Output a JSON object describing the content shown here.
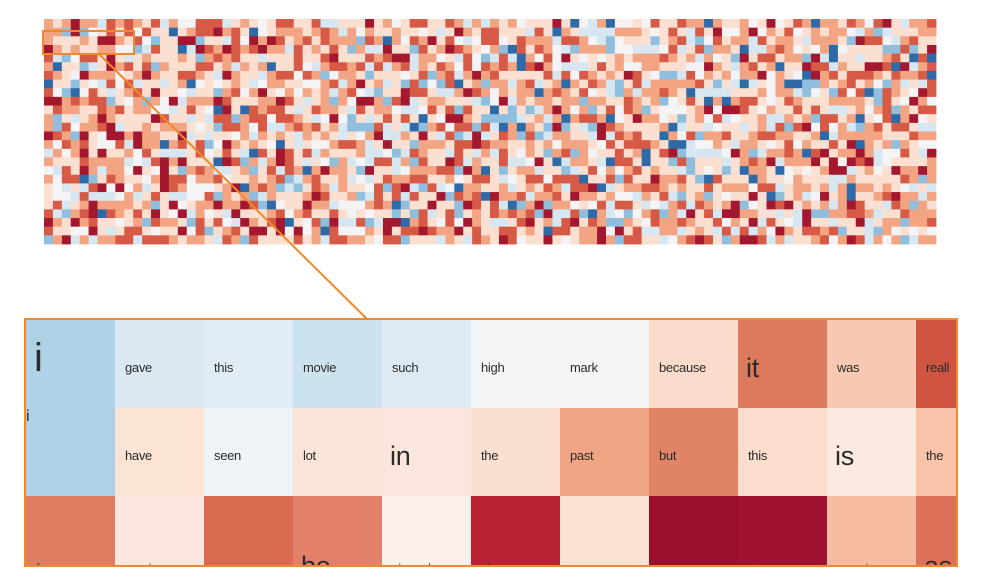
{
  "palette": {
    "strong_negative": "#2f6aa8",
    "negative": "#8fbfdc",
    "weak_negative": "#d6e7f2",
    "neutral": "#f4f4f6",
    "weak_positive": "#fbe0d2",
    "positive": "#f3a483",
    "strong_positive": "#d75a46",
    "very_strong_positive": "#a3172f",
    "highlight": "#f0892b"
  },
  "overview": {
    "rows": 26,
    "cols": 100
  },
  "zoom": {
    "rows": [
      [
        {
          "word": "i",
          "color": "#afd2e6",
          "size": "huge"
        },
        {
          "word": "gave",
          "color": "#dbe8f2",
          "size": "small"
        },
        {
          "word": "this",
          "color": "#e1edf5",
          "size": "small"
        },
        {
          "word": "movie",
          "color": "#cde2ef",
          "size": "small"
        },
        {
          "word": "such",
          "color": "#dde9f3",
          "size": "small"
        },
        {
          "word": "high",
          "color": "#f3f4f6",
          "size": "small"
        },
        {
          "word": "mark",
          "color": "#f5f4f4",
          "size": "small"
        },
        {
          "word": "because",
          "color": "#fbdccc",
          "size": "small"
        },
        {
          "word": "it",
          "color": "#dc7a5e",
          "size": "big"
        },
        {
          "word": "was",
          "color": "#f8c8b0",
          "size": "small"
        },
        {
          "word": "reall",
          "color": "#cf5442",
          "size": "small"
        }
      ],
      [
        {
          "word": "i",
          "color": "#afd2e6",
          "size": "huge"
        },
        {
          "word": "have",
          "color": "#fbe3d6",
          "size": "small"
        },
        {
          "word": "seen",
          "color": "#eef3f7",
          "size": "small"
        },
        {
          "word": "lot",
          "color": "#fbe4d8",
          "size": "small"
        },
        {
          "word": "in",
          "color": "#fae6dd",
          "size": "big"
        },
        {
          "word": "the",
          "color": "#fbe0d2",
          "size": "small"
        },
        {
          "word": "past",
          "color": "#f2a585",
          "size": "small"
        },
        {
          "word": "but",
          "color": "#e08466",
          "size": "small"
        },
        {
          "word": "this",
          "color": "#fbddcd",
          "size": "small"
        },
        {
          "word": "is",
          "color": "#fce9e0",
          "size": "big"
        },
        {
          "word": "the",
          "color": "#f8c3a9",
          "size": "small"
        }
      ],
      [
        {
          "word": "few",
          "color": "#e07c62",
          "size": "small"
        },
        {
          "word": "movies",
          "color": "#fbe7de",
          "size": "small"
        },
        {
          "word": "can",
          "color": "#d9694f",
          "size": "small"
        },
        {
          "word": "be",
          "color": "#e2806a",
          "size": "big"
        },
        {
          "word": "viewed",
          "color": "#fbf0eb",
          "size": "small"
        },
        {
          "word": "almost",
          "color": "#b82233",
          "size": "small"
        },
        {
          "word": "years",
          "color": "#fbe1d3",
          "size": "small"
        },
        {
          "word": "later",
          "color": "#9a0f2b",
          "size": "small"
        },
        {
          "word": "yet",
          "color": "#a01330",
          "size": "small"
        },
        {
          "word": "remain",
          "color": "#f7bca1",
          "size": "small"
        },
        {
          "word": "as",
          "color": "#dc7158",
          "size": "big"
        }
      ]
    ]
  }
}
